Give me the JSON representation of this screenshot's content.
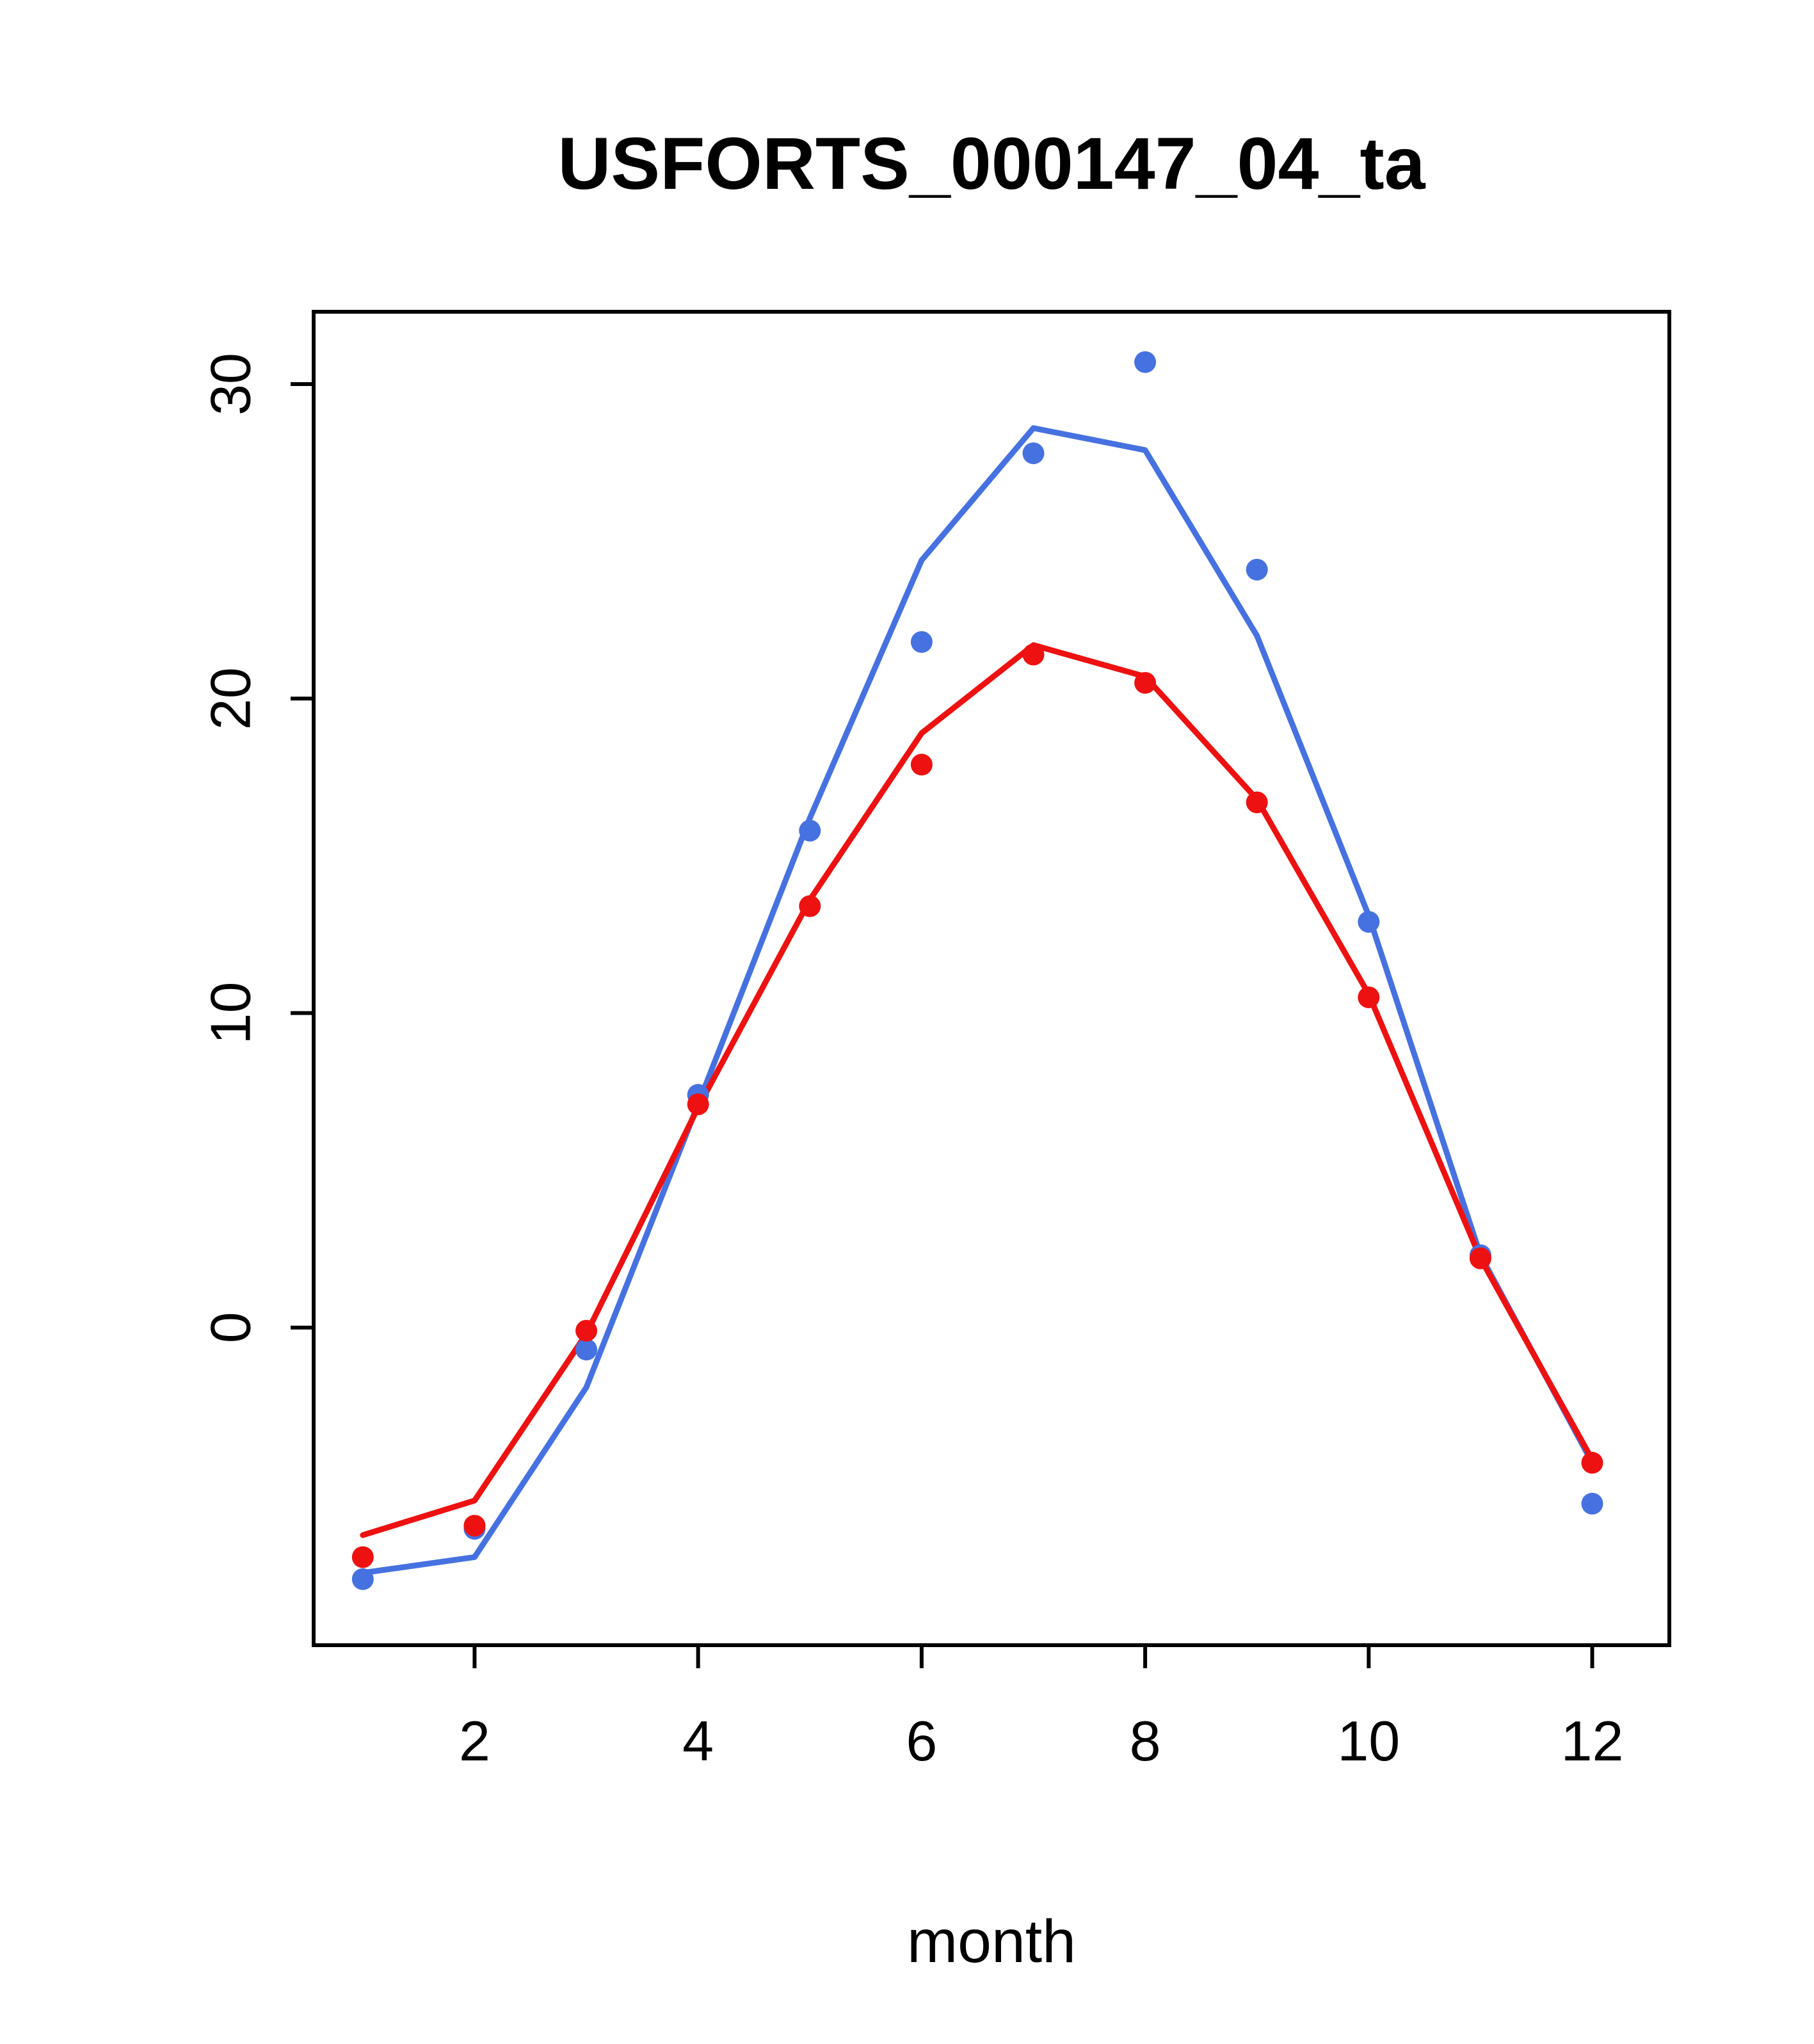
{
  "chart_data": {
    "type": "line",
    "title": "USFORTS_000147_04_ta",
    "xlabel": "month",
    "ylabel": "",
    "x": [
      1,
      2,
      3,
      4,
      5,
      6,
      7,
      8,
      9,
      10,
      11,
      12
    ],
    "xticks": [
      2,
      4,
      6,
      8,
      10,
      12
    ],
    "yticks": [
      0,
      10,
      20,
      30
    ],
    "xlim": [
      0.56,
      12.69
    ],
    "ylim": [
      -10.1,
      32.3
    ],
    "grid": false,
    "legend": "none",
    "colors": {
      "blue": "#4671e0",
      "red": "#ee1111",
      "axis": "#000000",
      "background": "#ffffff"
    },
    "series": [
      {
        "name": "blue-model-line",
        "type": "line",
        "color": "#4671e0",
        "values": [
          -7.8,
          -7.3,
          -1.9,
          7.1,
          16.2,
          24.4,
          28.6,
          27.9,
          22.0,
          13.1,
          2.3,
          -4.3
        ]
      },
      {
        "name": "red-model-line",
        "type": "line",
        "color": "#ee1111",
        "values": [
          -6.6,
          -5.5,
          -0.2,
          7.0,
          13.6,
          18.9,
          21.7,
          20.7,
          16.8,
          10.6,
          2.2,
          -4.2
        ]
      },
      {
        "name": "blue-observed-points",
        "type": "points",
        "color": "#4671e0",
        "values": [
          -8.0,
          -6.4,
          -0.7,
          7.4,
          15.8,
          21.8,
          27.8,
          30.7,
          24.1,
          12.9,
          2.3,
          -5.6
        ]
      },
      {
        "name": "red-observed-points",
        "type": "points",
        "color": "#ee1111",
        "values": [
          -7.3,
          -6.3,
          -0.1,
          7.1,
          13.4,
          17.9,
          21.4,
          20.5,
          16.7,
          10.5,
          2.2,
          -4.3
        ]
      }
    ]
  }
}
